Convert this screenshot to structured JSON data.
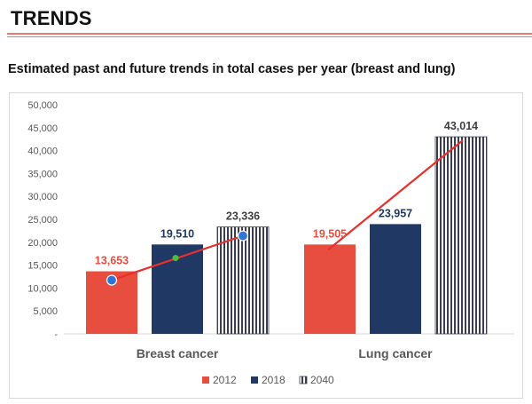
{
  "header": {
    "title": "TRENDS",
    "subtitle": "Estimated past and future trends in total cases per year (breast and lung)"
  },
  "colors": {
    "s2012": "#e84e40",
    "s2018": "#203864",
    "s2040_stripe": "#3c3c50",
    "trend_line": "#e8302a",
    "marker": "#2e75d6",
    "marker_mid": "#4cbf3a",
    "label_red": "#e84e40",
    "label_dark": "#203864"
  },
  "chart_data": {
    "type": "bar",
    "title": "",
    "categories": [
      "Breast cancer",
      "Lung cancer"
    ],
    "series": [
      {
        "name": "2012",
        "values": [
          13653,
          19505
        ]
      },
      {
        "name": "2018",
        "values": [
          19510,
          23957
        ]
      },
      {
        "name": "2040",
        "values": [
          23336,
          43014
        ]
      }
    ],
    "data_labels": [
      [
        "13,653",
        "19,505"
      ],
      [
        "19,510",
        "23,957"
      ],
      [
        "23,336",
        "43,014"
      ]
    ],
    "y_ticks": [
      "-",
      "5,000",
      "10,000",
      "15,000",
      "20,000",
      "25,000",
      "30,000",
      "35,000",
      "40,000",
      "45,000",
      "50,000"
    ],
    "ylim": [
      0,
      50000
    ],
    "grid": false,
    "legend": "bottom",
    "annotations": "red trend lines connecting 2012 to 2040 values for each category"
  }
}
